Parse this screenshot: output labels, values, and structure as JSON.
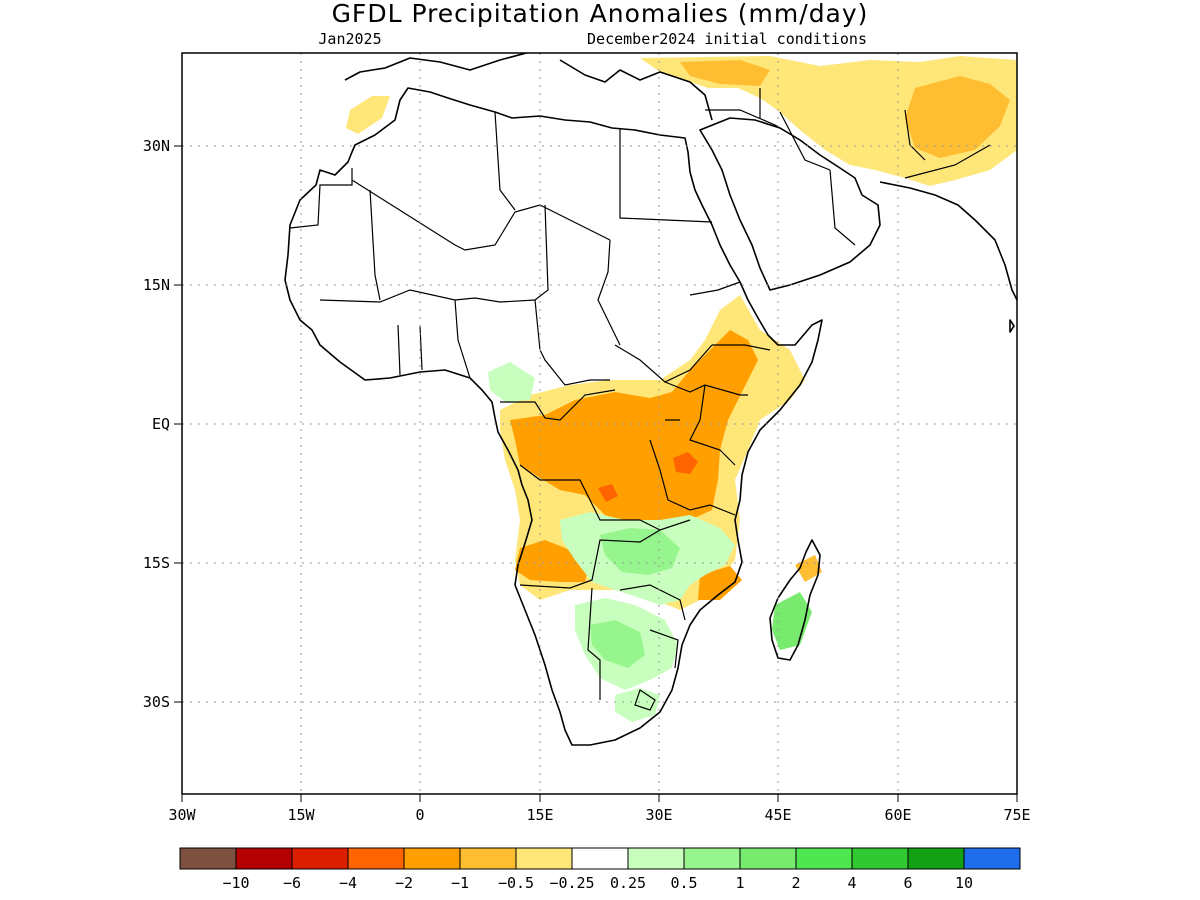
{
  "title": "GFDL Precipitation Anomalies (mm/day)",
  "valid_month": "Jan2025",
  "init_conditions": "December2024 initial conditions",
  "map": {
    "lon_ticks": [
      "30W",
      "15W",
      "0",
      "15E",
      "30E",
      "45E",
      "60E",
      "75E"
    ],
    "lat_ticks": [
      "30N",
      "15N",
      "EQ",
      "15S",
      "30S"
    ],
    "lon_range": [
      -30,
      75
    ],
    "lat_range": [
      -42,
      40
    ],
    "grid": "dotted"
  },
  "colorbar": {
    "colors": [
      "#7d5040",
      "#b40000",
      "#dc1e00",
      "#ff6400",
      "#ffa000",
      "#ffbe32",
      "#ffe678",
      "#ffffff",
      "#c8ffbe",
      "#96f58c",
      "#78eb6e",
      "#50e650",
      "#32c832",
      "#14a014",
      "#1e6eeb"
    ],
    "labels": [
      "-10",
      "-6",
      "-4",
      "-2",
      "-1",
      "-0.5",
      "-0.25",
      "0.25",
      "0.5",
      "1",
      "2",
      "4",
      "6",
      "10"
    ]
  },
  "anomaly_regions": [
    {
      "name": "Central Africa / Congo Basin",
      "level": "-1 to -2"
    },
    {
      "name": "Lake Victoria region",
      "level": "-2 to -4"
    },
    {
      "name": "Ethiopian Highlands",
      "level": "-0.5 to -1"
    },
    {
      "name": "Angola",
      "level": "-0.5 to -1"
    },
    {
      "name": "Zambia / Zimbabwe",
      "level": "0.5 to 1"
    },
    {
      "name": "Madagascar",
      "level": "1 to 2"
    },
    {
      "name": "Iran / Afghanistan",
      "level": "-0.5 to -1"
    }
  ]
}
